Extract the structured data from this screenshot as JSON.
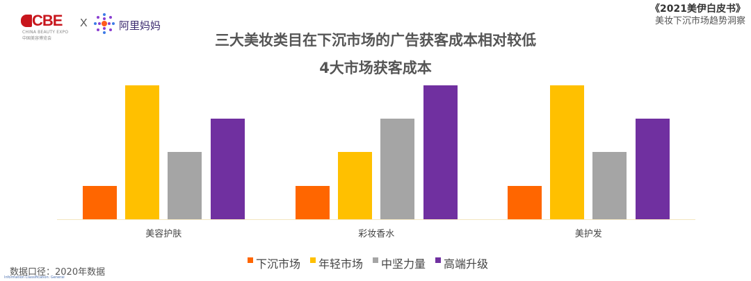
{
  "header": {
    "logo_cbe": {
      "text": "CBE",
      "sub_en": "CHINA BEAUTY EXPO",
      "sub_cn": "中国美容博览会"
    },
    "logo_separator": "X",
    "logo_partner": "阿里妈妈",
    "report_title": "《2021美伊白皮书》",
    "report_subtitle": "美妆下沉市场趋势洞察"
  },
  "title": "三大美妆类目在下沉市场的广告获客成本相对较低",
  "subtitle": "4大市场获客成本",
  "footer": {
    "note": "数据口径：2020年数据",
    "classification": "Information Classification: General"
  },
  "colors": {
    "下沉市场": "#ff6600",
    "年轻市场": "#ffc000",
    "中坚力量": "#a5a5a5",
    "高端升级": "#7030a0"
  },
  "chart_data": {
    "type": "bar",
    "title": "4大市场获客成本",
    "categories": [
      "美容护肤",
      "彩妆香水",
      "美护发"
    ],
    "series": [
      {
        "name": "下沉市场",
        "color": "#ff6600",
        "values": [
          1,
          1,
          1
        ]
      },
      {
        "name": "年轻市场",
        "color": "#ffc000",
        "values": [
          4,
          2,
          4
        ]
      },
      {
        "name": "中坚力量",
        "color": "#a5a5a5",
        "values": [
          2,
          3,
          2
        ]
      },
      {
        "name": "高端升级",
        "color": "#7030a0",
        "values": [
          3,
          4,
          3
        ]
      }
    ],
    "xlabel": "",
    "ylabel": "",
    "ylim": [
      0,
      4
    ],
    "grid": false,
    "legend_position": "bottom",
    "note": "Relative cost rank (no axis values shown)"
  }
}
